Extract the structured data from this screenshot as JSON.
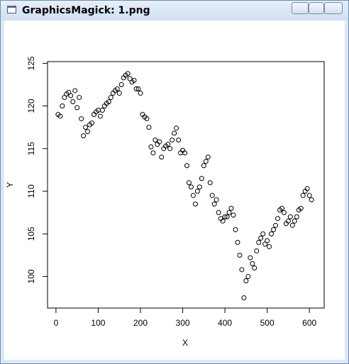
{
  "window": {
    "title": "GraphicsMagick: 1.png"
  },
  "chart_data": {
    "type": "scatter",
    "xlabel": "X",
    "ylabel": "Y",
    "xlim": [
      -20,
      635
    ],
    "ylim": [
      96.3,
      125.2
    ],
    "xticks": [
      0,
      100,
      200,
      300,
      400,
      500,
      600
    ],
    "yticks": [
      100,
      105,
      110,
      115,
      120,
      125
    ],
    "color": "#000000",
    "x": [
      5,
      10,
      15,
      20,
      25,
      30,
      35,
      40,
      45,
      50,
      55,
      60,
      65,
      70,
      75,
      80,
      85,
      90,
      95,
      100,
      105,
      110,
      115,
      120,
      125,
      130,
      135,
      140,
      145,
      150,
      155,
      160,
      165,
      170,
      175,
      180,
      185,
      190,
      195,
      200,
      205,
      210,
      215,
      220,
      225,
      230,
      235,
      240,
      245,
      250,
      255,
      260,
      265,
      270,
      275,
      280,
      285,
      290,
      295,
      300,
      305,
      310,
      315,
      320,
      325,
      330,
      335,
      340,
      345,
      350,
      355,
      360,
      365,
      370,
      375,
      380,
      385,
      390,
      395,
      400,
      405,
      410,
      415,
      420,
      425,
      430,
      435,
      440,
      445,
      450,
      455,
      460,
      465,
      470,
      475,
      480,
      485,
      490,
      495,
      500,
      505,
      510,
      515,
      520,
      525,
      530,
      535,
      540,
      545,
      550,
      555,
      560,
      565,
      570,
      575,
      580,
      585,
      590,
      595,
      600,
      605
    ],
    "values": [
      119,
      118.8,
      120,
      121,
      121.4,
      121.6,
      121.2,
      120.5,
      121.8,
      119.8,
      121,
      118.5,
      116.5,
      117.5,
      117,
      117.8,
      118,
      119,
      119.3,
      119.5,
      118.8,
      119.5,
      120,
      120.3,
      120.5,
      121,
      121.5,
      121.8,
      122,
      121.5,
      122.5,
      123.3,
      123.6,
      123.8,
      123.2,
      122.8,
      123,
      122,
      122,
      121.5,
      119,
      118.7,
      118.5,
      117.5,
      115.2,
      114.5,
      116,
      115.5,
      115.8,
      114,
      115,
      115.3,
      115.5,
      115,
      116,
      116.8,
      117.4,
      116,
      114.5,
      114.8,
      114.5,
      113,
      111,
      110.5,
      109.5,
      108.5,
      110,
      110.5,
      111.5,
      113,
      113.5,
      114,
      111,
      109.5,
      108.5,
      109,
      107.5,
      106.8,
      106.5,
      107,
      107,
      107.5,
      108,
      107.2,
      105.5,
      104,
      102.5,
      100.8,
      97.5,
      99.5,
      100,
      102.2,
      101.5,
      101,
      103,
      104,
      104.5,
      105,
      103.8,
      104.2,
      103.5,
      105,
      105.5,
      106,
      106.8,
      107.8,
      108,
      107.5,
      106.2,
      106.5,
      107,
      106,
      106.5,
      107,
      107.8,
      108,
      109.5,
      110,
      110.3,
      109.5,
      109
    ]
  }
}
